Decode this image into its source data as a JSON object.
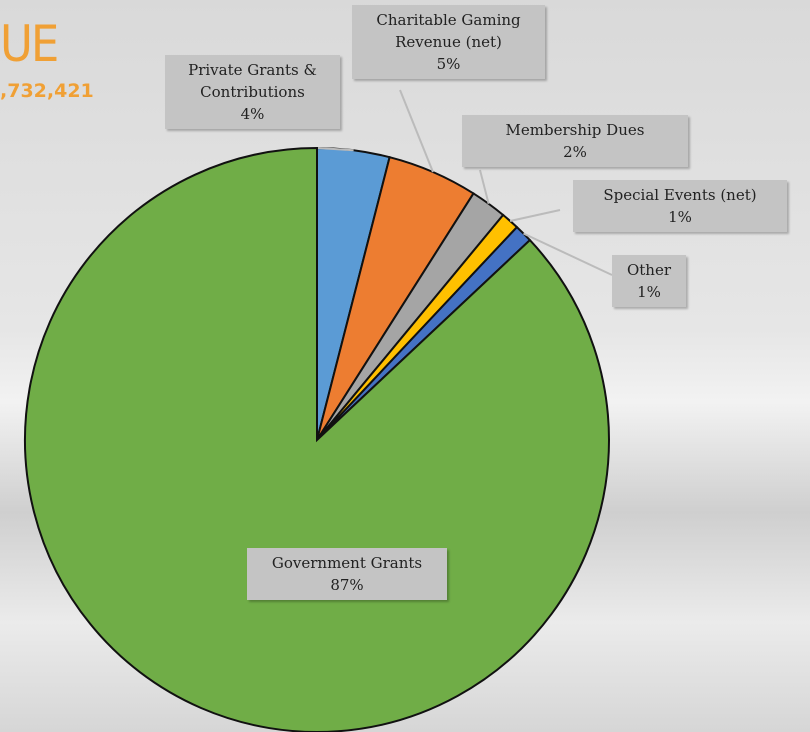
{
  "chart_data": {
    "type": "pie",
    "title": "UE",
    "subtitle": ",732,421",
    "categories": [
      "Private Grants & Contributions",
      "Charitable Gaming Revenue (net)",
      "Membership Dues",
      "Special Events (net)",
      "Other",
      "Government Grants"
    ],
    "values": [
      4,
      5,
      2,
      1,
      1,
      87
    ],
    "value_labels": [
      "4%",
      "5%",
      "2%",
      "1%",
      "1%",
      "87%"
    ],
    "colors": [
      "#5b9bd5",
      "#ed7d31",
      "#a5a5a5",
      "#ffc000",
      "#4472c4",
      "#70ad47"
    ]
  }
}
